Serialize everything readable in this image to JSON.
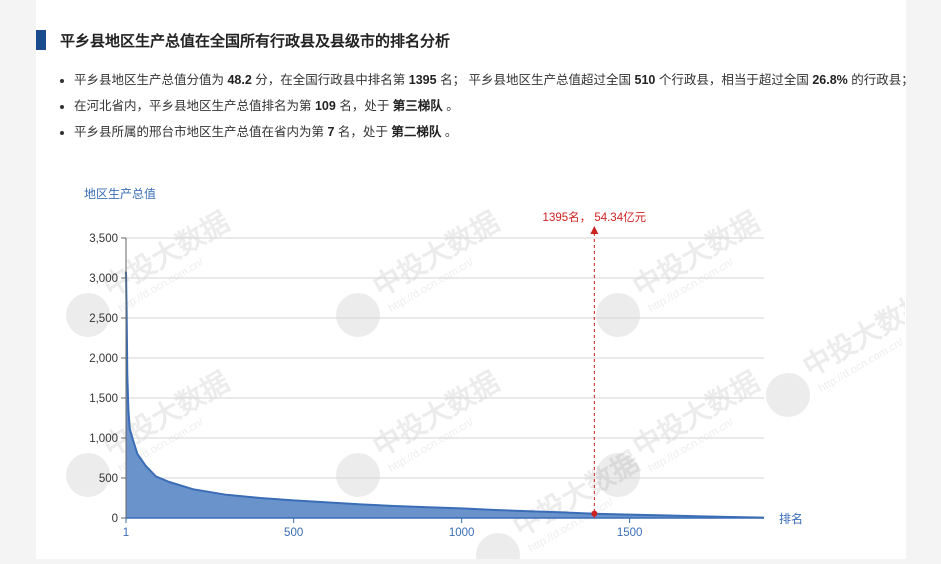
{
  "title": "平乡县地区生产总值在全国所有行政县及县级市的排名分析",
  "bullets": [
    {
      "parts": [
        {
          "t": "平乡县地区生产总值分值为 ",
          "b": false
        },
        {
          "t": "48.2",
          "b": true
        },
        {
          "t": " 分，在全国行政县中排名第 ",
          "b": false
        },
        {
          "t": "1395",
          "b": true
        },
        {
          "t": " 名； 平乡县地区生产总值超过全国 ",
          "b": false
        },
        {
          "t": "510",
          "b": true
        },
        {
          "t": " 个行政县，相当于超过全国 ",
          "b": false
        },
        {
          "t": "26.8%",
          "b": true
        },
        {
          "t": " 的行政县；",
          "b": false
        }
      ]
    },
    {
      "parts": [
        {
          "t": "在河北省内，平乡县地区生产总值排名为第 ",
          "b": false
        },
        {
          "t": "109",
          "b": true
        },
        {
          "t": " 名，处于 ",
          "b": false
        },
        {
          "t": "第三梯队",
          "b": true
        },
        {
          "t": " 。",
          "b": false
        }
      ]
    },
    {
      "parts": [
        {
          "t": "平乡县所属的邢台市地区生产总值在省内为第 ",
          "b": false
        },
        {
          "t": "7",
          "b": true
        },
        {
          "t": " 名，处于 ",
          "b": false
        },
        {
          "t": "第二梯队",
          "b": true
        },
        {
          "t": " 。",
          "b": false
        }
      ]
    }
  ],
  "watermark": {
    "text": "中投大数据",
    "url": "http://d.ocn.com.cn/"
  },
  "chart_data": {
    "type": "area",
    "ylabel": "地区生产总值",
    "xlabel": "排名",
    "xlim": [
      1,
      1900
    ],
    "ylim": [
      0,
      3500
    ],
    "yticks": [
      0,
      500,
      1000,
      1500,
      2000,
      2500,
      3000,
      3500
    ],
    "ytick_labels": [
      "0",
      "500",
      "1,000",
      "1,500",
      "2,000",
      "2,500",
      "3,000",
      "3,500"
    ],
    "xticks": [
      1,
      500,
      1000,
      1500
    ],
    "xtick_labels": [
      "1",
      "500",
      "1000",
      "1500"
    ],
    "grid": true,
    "color": "#3a6db5",
    "fill": "#6a93cc",
    "marker_color": "#cc2222",
    "series": [
      {
        "x": [
          1,
          3,
          5,
          8,
          12,
          20,
          35,
          60,
          90,
          130,
          200,
          300,
          400,
          500,
          600,
          700,
          800,
          900,
          1000,
          1100,
          1200,
          1300,
          1395,
          1500,
          1600,
          1700,
          1800,
          1900
        ],
        "values": [
          3080,
          2500,
          1800,
          1350,
          1120,
          1000,
          800,
          650,
          520,
          450,
          360,
          290,
          250,
          220,
          195,
          170,
          150,
          135,
          120,
          100,
          85,
          70,
          54.34,
          42,
          32,
          22,
          12,
          4
        ]
      }
    ],
    "highlight": {
      "rank": 1395,
      "value": 54.34,
      "label": "1395名， 54.34亿元"
    }
  }
}
